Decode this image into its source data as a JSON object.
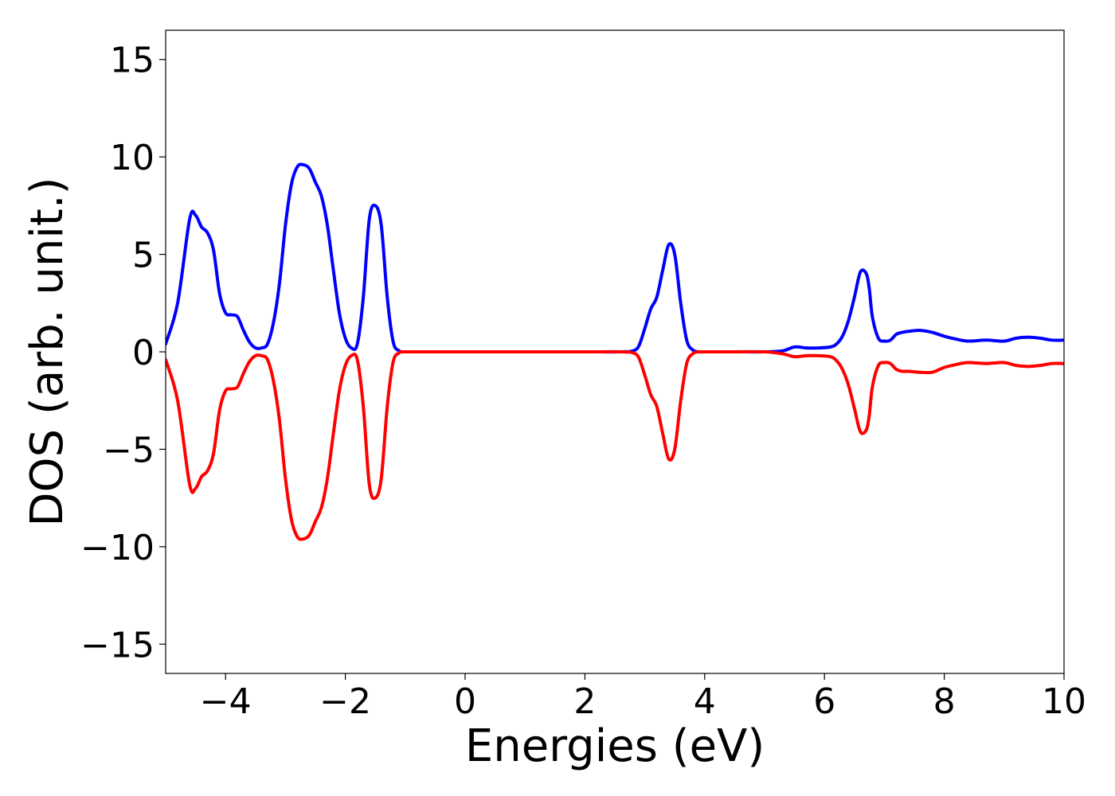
{
  "chart_data": {
    "type": "line",
    "title": "",
    "xlabel": "Energies (eV)",
    "ylabel": "DOS (arb. unit.)",
    "xlim": [
      -5,
      10
    ],
    "ylim": [
      -16.5,
      16.5
    ],
    "grid": false,
    "legend": "none",
    "xticks": [
      -4,
      -2,
      0,
      2,
      4,
      6,
      8,
      10
    ],
    "xtick_labels": [
      "−4",
      "−2",
      "0",
      "2",
      "4",
      "6",
      "8",
      "10"
    ],
    "yticks": [
      15,
      10,
      5,
      0,
      -5,
      -10,
      -15
    ],
    "ytick_labels": [
      "15",
      "10",
      "5",
      "0",
      "−5",
      "−10",
      "−15"
    ],
    "series": [
      {
        "color": "#0000ff",
        "x": [
          -5.0,
          -4.8,
          -4.6,
          -4.5,
          -4.4,
          -4.3,
          -4.2,
          -4.1,
          -4.0,
          -3.9,
          -3.8,
          -3.7,
          -3.6,
          -3.5,
          -3.4,
          -3.3,
          -3.2,
          -3.1,
          -3.0,
          -2.9,
          -2.8,
          -2.7,
          -2.6,
          -2.5,
          -2.4,
          -2.3,
          -2.2,
          -2.1,
          -2.0,
          -1.9,
          -1.8,
          -1.7,
          -1.6,
          -1.5,
          -1.4,
          -1.3,
          -1.2,
          -1.1,
          -1.05,
          -1.0,
          -0.9,
          -0.8,
          -0.7,
          -0.6,
          -0.5,
          0.0,
          1.0,
          2.0,
          2.6,
          2.8,
          2.9,
          3.0,
          3.1,
          3.2,
          3.3,
          3.4,
          3.5,
          3.6,
          3.7,
          3.8,
          3.9,
          4.0,
          4.5,
          5.0,
          5.3,
          5.5,
          5.7,
          5.9,
          6.1,
          6.2,
          6.3,
          6.4,
          6.5,
          6.6,
          6.7,
          6.75,
          6.8,
          6.9,
          7.0,
          7.1,
          7.2,
          7.3,
          7.4,
          7.6,
          7.8,
          8.0,
          8.2,
          8.4,
          8.7,
          9.0,
          9.2,
          9.4,
          9.6,
          9.8,
          10.0
        ],
        "y": [
          0.4,
          2.5,
          6.8,
          7.0,
          6.4,
          6.1,
          5.2,
          3.0,
          2.0,
          1.9,
          1.8,
          1.1,
          0.5,
          0.2,
          0.2,
          0.4,
          1.5,
          3.5,
          6.5,
          8.6,
          9.5,
          9.6,
          9.4,
          8.7,
          8.0,
          6.5,
          4.2,
          2.0,
          0.7,
          0.2,
          0.4,
          2.8,
          6.8,
          7.5,
          6.5,
          2.8,
          0.5,
          0.05,
          0.0,
          0.0,
          0.0,
          0.0,
          0.0,
          0.0,
          0.0,
          0.0,
          0.0,
          0.0,
          0.0,
          0.05,
          0.3,
          1.2,
          2.2,
          2.8,
          4.2,
          5.5,
          5.0,
          2.5,
          0.6,
          0.1,
          0.0,
          0.0,
          0.0,
          0.0,
          0.05,
          0.25,
          0.2,
          0.2,
          0.25,
          0.4,
          0.8,
          1.6,
          2.8,
          4.1,
          4.0,
          3.2,
          1.8,
          0.7,
          0.55,
          0.6,
          0.9,
          1.0,
          1.05,
          1.1,
          1.0,
          0.8,
          0.65,
          0.55,
          0.6,
          0.55,
          0.7,
          0.75,
          0.7,
          0.6,
          0.6
        ]
      },
      {
        "color": "#ff0000",
        "x": [
          -5.0,
          -4.8,
          -4.6,
          -4.5,
          -4.4,
          -4.3,
          -4.2,
          -4.1,
          -4.0,
          -3.9,
          -3.8,
          -3.7,
          -3.6,
          -3.5,
          -3.4,
          -3.3,
          -3.2,
          -3.1,
          -3.0,
          -2.9,
          -2.8,
          -2.7,
          -2.6,
          -2.5,
          -2.4,
          -2.3,
          -2.2,
          -2.1,
          -2.0,
          -1.9,
          -1.8,
          -1.7,
          -1.6,
          -1.5,
          -1.4,
          -1.3,
          -1.2,
          -1.1,
          -1.05,
          -1.0,
          -0.9,
          -0.8,
          -0.7,
          -0.6,
          -0.5,
          0.0,
          1.0,
          2.0,
          2.6,
          2.8,
          2.9,
          3.0,
          3.1,
          3.2,
          3.3,
          3.4,
          3.5,
          3.6,
          3.7,
          3.8,
          3.9,
          4.0,
          4.5,
          5.0,
          5.3,
          5.5,
          5.7,
          5.9,
          6.1,
          6.2,
          6.3,
          6.4,
          6.5,
          6.6,
          6.7,
          6.75,
          6.8,
          6.9,
          7.0,
          7.1,
          7.2,
          7.3,
          7.4,
          7.6,
          7.8,
          8.0,
          8.2,
          8.4,
          8.7,
          9.0,
          9.2,
          9.4,
          9.6,
          9.8,
          10.0
        ],
        "y": [
          -0.4,
          -2.5,
          -6.8,
          -7.0,
          -6.4,
          -6.1,
          -5.2,
          -3.0,
          -2.0,
          -1.9,
          -1.8,
          -1.1,
          -0.5,
          -0.2,
          -0.2,
          -0.4,
          -1.5,
          -3.5,
          -6.5,
          -8.6,
          -9.5,
          -9.6,
          -9.4,
          -8.7,
          -8.0,
          -6.5,
          -4.2,
          -2.0,
          -0.7,
          -0.2,
          -0.4,
          -2.8,
          -6.8,
          -7.5,
          -6.5,
          -2.8,
          -0.5,
          -0.05,
          0.0,
          0.0,
          0.0,
          0.0,
          0.0,
          0.0,
          0.0,
          0.0,
          0.0,
          0.0,
          0.0,
          -0.05,
          -0.3,
          -1.2,
          -2.2,
          -2.8,
          -4.2,
          -5.5,
          -5.0,
          -2.5,
          -0.6,
          -0.1,
          0.0,
          0.0,
          0.0,
          0.0,
          -0.1,
          -0.25,
          -0.2,
          -0.2,
          -0.25,
          -0.45,
          -0.9,
          -1.7,
          -2.9,
          -4.1,
          -4.0,
          -3.2,
          -1.8,
          -0.7,
          -0.55,
          -0.6,
          -0.9,
          -1.0,
          -1.0,
          -1.05,
          -1.05,
          -0.8,
          -0.65,
          -0.55,
          -0.6,
          -0.55,
          -0.7,
          -0.75,
          -0.7,
          -0.6,
          -0.6
        ]
      }
    ]
  }
}
